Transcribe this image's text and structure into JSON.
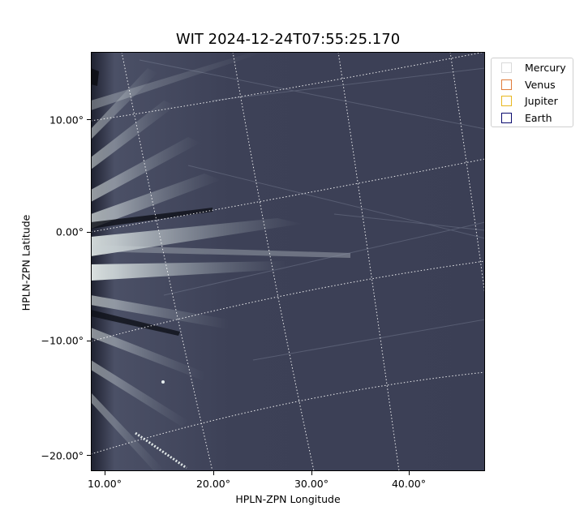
{
  "title": "WIT 2024-12-24T07:55:25.170",
  "axes": {
    "xlabel": "HPLN-ZPN Longitude",
    "ylabel": "HPLN-ZPN Latitude",
    "x_ticks": [
      "10.00°",
      "20.00°",
      "30.00°",
      "40.00°"
    ],
    "y_ticks": [
      "10.00°",
      "0.00°",
      "−10.00°",
      "−20.00°"
    ]
  },
  "legend": [
    {
      "label": "Mercury",
      "color": "#d9d9d9"
    },
    {
      "label": "Venus",
      "color": "#e07b39"
    },
    {
      "label": "Jupiter",
      "color": "#e8b820"
    },
    {
      "label": "Earth",
      "color": "#0a0a6e"
    }
  ],
  "colors": {
    "background": "#3a3e54",
    "streamer": "#e8f2f0",
    "grid": "#ffffff"
  }
}
